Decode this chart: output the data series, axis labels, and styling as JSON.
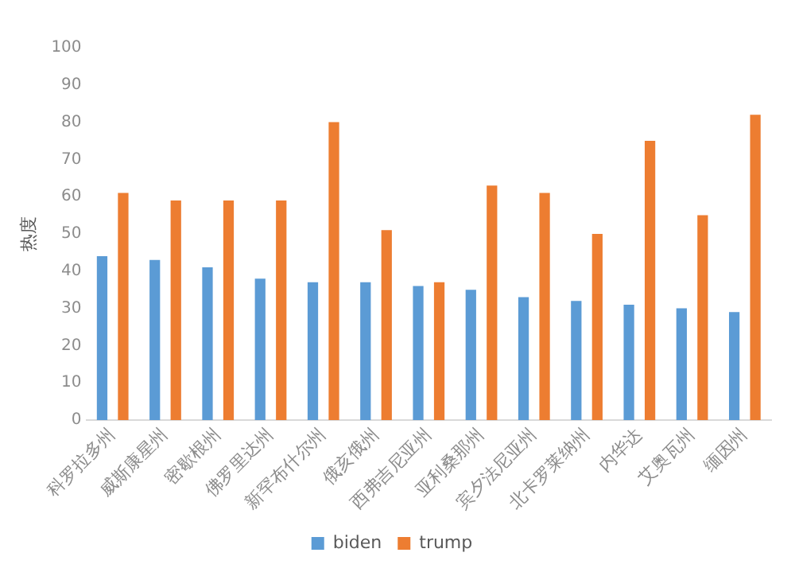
{
  "chart_data": {
    "type": "bar",
    "ylabel": "热度",
    "categories": [
      "科罗拉多州",
      "威斯康星州",
      "密歇根州",
      "佛罗里达州",
      "新罕布什尔州",
      "俄亥俄州",
      "西弗吉尼亚州",
      "亚利桑那州",
      "宾夕法尼亚州",
      "北卡罗莱纳州",
      "内华达",
      "艾奥瓦州",
      "缅因州"
    ],
    "series": [
      {
        "name": "biden",
        "color": "#5b9bd5",
        "values": [
          44,
          43,
          41,
          38,
          37,
          37,
          36,
          35,
          33,
          32,
          31,
          30,
          29
        ]
      },
      {
        "name": "trump",
        "color": "#ed7d31",
        "values": [
          61,
          59,
          59,
          59,
          80,
          51,
          37,
          63,
          61,
          50,
          75,
          55,
          82
        ]
      }
    ],
    "ylim": [
      0,
      100
    ],
    "yticks": [
      0,
      10,
      20,
      30,
      40,
      50,
      60,
      70,
      80,
      90,
      100
    ],
    "grid": false,
    "legend": "bottom"
  }
}
